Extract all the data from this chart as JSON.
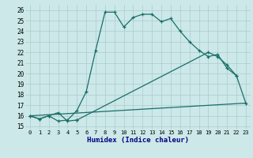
{
  "xlabel": "Humidex (Indice chaleur)",
  "bg_color": "#cce8e8",
  "grid_color": "#aacccc",
  "line_color": "#1a6e6a",
  "xlim": [
    -0.5,
    23.5
  ],
  "ylim": [
    14.7,
    26.5
  ],
  "yticks": [
    15,
    16,
    17,
    18,
    19,
    20,
    21,
    22,
    23,
    24,
    25,
    26
  ],
  "xticks": [
    0,
    1,
    2,
    3,
    4,
    5,
    6,
    7,
    8,
    9,
    10,
    11,
    12,
    13,
    14,
    15,
    16,
    17,
    18,
    19,
    20,
    21,
    22,
    23
  ],
  "line1_x": [
    0,
    1,
    2,
    3,
    4,
    5,
    6,
    7,
    8,
    9,
    10,
    11,
    12,
    13,
    14,
    15,
    16,
    17,
    18,
    19,
    20,
    21,
    22
  ],
  "line1_y": [
    16.0,
    15.7,
    16.0,
    15.5,
    15.6,
    16.5,
    18.3,
    22.2,
    25.8,
    25.8,
    24.4,
    25.3,
    25.6,
    25.6,
    24.9,
    25.2,
    24.0,
    23.0,
    22.2,
    21.6,
    21.8,
    20.5,
    19.8
  ],
  "line2a_x": [
    0,
    1,
    2,
    3,
    4,
    5
  ],
  "line2a_y": [
    16.0,
    15.7,
    16.0,
    16.3,
    15.5,
    15.6
  ],
  "line2b_x": [
    5,
    19,
    20,
    21,
    22,
    23
  ],
  "line2b_y": [
    15.6,
    22.0,
    21.6,
    20.8,
    19.8,
    17.2
  ],
  "line3_x": [
    0,
    23
  ],
  "line3_y": [
    16.0,
    17.2
  ]
}
